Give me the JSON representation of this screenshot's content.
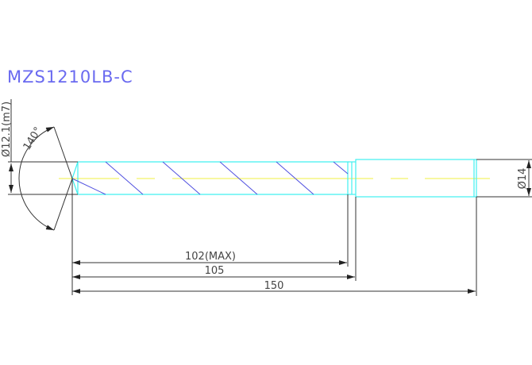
{
  "title": "MZS1210LB-C",
  "dimensions": {
    "flute_diameter": "Ø12.1(m7)",
    "point_angle": "140°",
    "shank_diameter": "Ø14",
    "flute_length": "102(MAX)",
    "body_length": "105",
    "overall_length": "150"
  },
  "colors": {
    "outline": "#40f0f0",
    "helix": "#5050e0",
    "centerline": "#f0f040",
    "dimension": "#333333",
    "title": "#6a6af0"
  }
}
